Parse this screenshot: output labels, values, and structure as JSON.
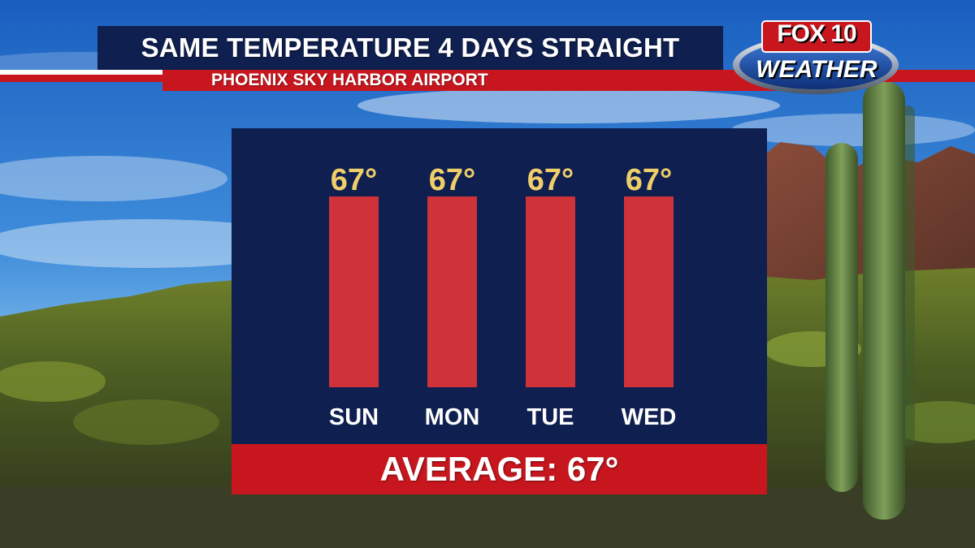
{
  "header": {
    "title": "SAME TEMPERATURE 4 DAYS STRAIGHT",
    "subtitle": "PHOENIX SKY HARBOR AIRPORT"
  },
  "logo": {
    "line1": "FOX 10",
    "line2": "WEATHER"
  },
  "footer": {
    "average_label": "AVERAGE: 67°"
  },
  "colors": {
    "navy": "#0f1f4f",
    "red": "#c8161e",
    "bar_red": "#d0323a",
    "value_gold": "#f0cf6a"
  },
  "chart_data": {
    "type": "bar",
    "categories": [
      "SUN",
      "MON",
      "TUE",
      "WED"
    ],
    "values": [
      67,
      67,
      67,
      67
    ],
    "value_labels": [
      "67°",
      "67°",
      "67°",
      "67°"
    ],
    "title": "SAME TEMPERATURE 4 DAYS STRAIGHT",
    "subtitle": "PHOENIX SKY HARBOR AIRPORT",
    "xlabel": "",
    "ylabel": "",
    "ylim": [
      0,
      67
    ],
    "grid": false,
    "legend": "none"
  }
}
